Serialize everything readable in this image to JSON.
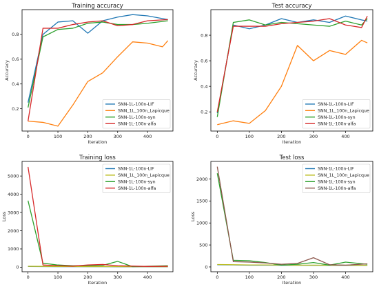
{
  "chart_data": [
    {
      "type": "line",
      "title": "Training accuracy",
      "xlabel": "Iteration",
      "ylabel": "Accuracy",
      "xlim": [
        -20,
        485
      ],
      "ylim": [
        0.02,
        1.0
      ],
      "xticks": [
        0,
        100,
        200,
        300,
        400
      ],
      "yticks": [
        0.2,
        0.4,
        0.6,
        0.8
      ],
      "grid": false,
      "legend": "bottom-right",
      "series": [
        {
          "name": "SNN-1L-100n-LIF",
          "color": "#1f77b4",
          "x": [
            0,
            50,
            100,
            150,
            200,
            250,
            300,
            350,
            400,
            468
          ],
          "y": [
            0.25,
            0.8,
            0.9,
            0.91,
            0.81,
            0.91,
            0.94,
            0.96,
            0.95,
            0.92
          ]
        },
        {
          "name": "SNN_1L_100n_Lapicque",
          "color": "#ff7f0e",
          "x": [
            0,
            50,
            100,
            150,
            200,
            250,
            300,
            350,
            400,
            450,
            468
          ],
          "y": [
            0.1,
            0.09,
            0.06,
            0.23,
            0.42,
            0.49,
            0.62,
            0.74,
            0.73,
            0.7,
            0.75
          ]
        },
        {
          "name": "SNN-1L-100n-syn",
          "color": "#2ca02c",
          "x": [
            0,
            50,
            100,
            150,
            200,
            250,
            300,
            350,
            400,
            468
          ],
          "y": [
            0.21,
            0.78,
            0.84,
            0.85,
            0.89,
            0.9,
            0.88,
            0.88,
            0.89,
            0.91
          ]
        },
        {
          "name": "SNN-1L-100n-alfa",
          "color": "#d62728",
          "x": [
            0,
            50,
            100,
            150,
            200,
            250,
            300,
            350,
            400,
            468
          ],
          "y": [
            0.1,
            0.85,
            0.85,
            0.88,
            0.9,
            0.91,
            0.87,
            0.88,
            0.91,
            0.92
          ]
        }
      ]
    },
    {
      "type": "line",
      "title": "Test accuracy",
      "xlabel": "Iteration",
      "ylabel": "Accuracy",
      "xlim": [
        -20,
        485
      ],
      "ylim": [
        0.05,
        1.0
      ],
      "xticks": [
        0,
        100,
        200,
        300,
        400
      ],
      "yticks": [
        0.2,
        0.4,
        0.6,
        0.8
      ],
      "grid": false,
      "legend": "bottom-right",
      "series": [
        {
          "name": "SNN-1L-100n-LIF",
          "color": "#1f77b4",
          "x": [
            0,
            50,
            100,
            150,
            200,
            250,
            300,
            350,
            400,
            450,
            468
          ],
          "y": [
            0.19,
            0.88,
            0.85,
            0.88,
            0.93,
            0.9,
            0.92,
            0.9,
            0.95,
            0.92,
            0.91
          ]
        },
        {
          "name": "SNN_1L_100n_Lapicque",
          "color": "#ff7f0e",
          "x": [
            0,
            50,
            100,
            150,
            200,
            250,
            300,
            350,
            400,
            450,
            468
          ],
          "y": [
            0.1,
            0.13,
            0.11,
            0.21,
            0.4,
            0.72,
            0.6,
            0.68,
            0.65,
            0.76,
            0.74
          ]
        },
        {
          "name": "SNN-1L-100n-syn",
          "color": "#2ca02c",
          "x": [
            0,
            50,
            100,
            150,
            200,
            250,
            300,
            350,
            400,
            450,
            468
          ],
          "y": [
            0.16,
            0.9,
            0.92,
            0.88,
            0.9,
            0.89,
            0.88,
            0.87,
            0.91,
            0.88,
            0.93
          ]
        },
        {
          "name": "SNN-1L-100n-alfa",
          "color": "#d62728",
          "x": [
            0,
            50,
            100,
            150,
            200,
            250,
            300,
            350,
            400,
            450,
            468
          ],
          "y": [
            0.2,
            0.87,
            0.87,
            0.87,
            0.89,
            0.9,
            0.91,
            0.93,
            0.88,
            0.86,
            0.95
          ]
        }
      ]
    },
    {
      "type": "line",
      "title": "Training loss",
      "xlabel": "Iteration",
      "ylabel": "Loss",
      "xlim": [
        -20,
        485
      ],
      "ylim": [
        -250,
        5800
      ],
      "xticks": [
        0,
        100,
        200,
        300,
        400
      ],
      "yticks": [
        0,
        1000,
        2000,
        3000,
        4000,
        5000
      ],
      "grid": false,
      "legend": "top-right",
      "series": [
        {
          "name": "SNN-1L-100n-LIF",
          "color": "#1f77b4",
          "x": [
            0,
            50,
            100,
            150,
            200,
            250,
            300,
            350,
            400,
            468
          ],
          "y": [
            40,
            35,
            30,
            30,
            28,
            28,
            25,
            25,
            25,
            25
          ]
        },
        {
          "name": "SNN_1L_100n_Lapicque",
          "color": "#bcbd22",
          "x": [
            0,
            50,
            100,
            150,
            200,
            250,
            300,
            350,
            400,
            468
          ],
          "y": [
            50,
            45,
            40,
            38,
            35,
            35,
            33,
            30,
            30,
            30
          ]
        },
        {
          "name": "SNN-1L-100n-syn",
          "color": "#2ca02c",
          "x": [
            0,
            50,
            100,
            150,
            200,
            250,
            300,
            350,
            400,
            468
          ],
          "y": [
            3650,
            220,
            120,
            80,
            80,
            100,
            320,
            30,
            50,
            80
          ]
        },
        {
          "name": "SNN-1L-100n-alfa",
          "color": "#d62728",
          "x": [
            0,
            50,
            100,
            150,
            200,
            250,
            300,
            350,
            400,
            468
          ],
          "y": [
            5500,
            120,
            80,
            60,
            120,
            150,
            80,
            60,
            40,
            50
          ]
        }
      ]
    },
    {
      "type": "line",
      "title": "Test loss",
      "xlabel": "Iteration",
      "ylabel": "Loss",
      "xlim": [
        -20,
        485
      ],
      "ylim": [
        -110,
        2400
      ],
      "xticks": [
        0,
        100,
        200,
        300,
        400
      ],
      "yticks": [
        0,
        500,
        1000,
        1500,
        2000
      ],
      "grid": false,
      "legend": "top-right",
      "series": [
        {
          "name": "SNN-1L-100n-LIF",
          "color": "#1f77b4",
          "x": [
            0,
            50,
            100,
            150,
            200,
            250,
            300,
            350,
            400,
            468
          ],
          "y": [
            50,
            45,
            40,
            40,
            38,
            38,
            35,
            35,
            35,
            35
          ]
        },
        {
          "name": "SNN_1L_100n_Lapicque",
          "color": "#bcbd22",
          "x": [
            0,
            50,
            100,
            150,
            200,
            250,
            300,
            350,
            400,
            468
          ],
          "y": [
            55,
            50,
            45,
            45,
            42,
            40,
            40,
            38,
            38,
            38
          ]
        },
        {
          "name": "SNN-1L-100n-syn",
          "color": "#2ca02c",
          "x": [
            0,
            50,
            100,
            150,
            200,
            250,
            300,
            350,
            400,
            468
          ],
          "y": [
            2130,
            150,
            140,
            100,
            40,
            60,
            100,
            40,
            110,
            60
          ]
        },
        {
          "name": "SNN-1L-100n-alfa",
          "color": "#8c564b",
          "x": [
            0,
            50,
            100,
            150,
            200,
            250,
            300,
            350,
            400,
            468
          ],
          "y": [
            2280,
            120,
            110,
            90,
            60,
            80,
            210,
            50,
            40,
            70
          ]
        }
      ]
    }
  ]
}
